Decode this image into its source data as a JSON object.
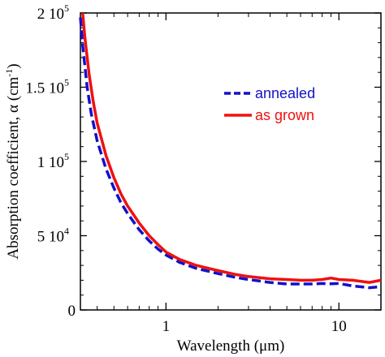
{
  "chart_data": {
    "type": "line",
    "xlabel": "Wavelength  (μm)",
    "ylabel_main": "Absorption coefficient, α (cm",
    "ylabel_sup": "-1",
    "ylabel_close": ")",
    "x_scale": "log",
    "xlim": [
      0.32,
      17.5
    ],
    "ylim": [
      0,
      200000
    ],
    "grid": false,
    "legend_position": "upper-right",
    "x_ticks": [
      {
        "value": 1,
        "label": "1"
      },
      {
        "value": 10,
        "label": "10"
      }
    ],
    "y_ticks": [
      {
        "value": 0,
        "base": "0",
        "exp": ""
      },
      {
        "value": 50000,
        "base": "5 10",
        "exp": "4"
      },
      {
        "value": 100000,
        "base": "1 10",
        "exp": "5"
      },
      {
        "value": 150000,
        "base": "1.5 10",
        "exp": "5"
      },
      {
        "value": 200000,
        "base": "2 10",
        "exp": "5"
      }
    ],
    "series": [
      {
        "name": "annealed",
        "color": "#1111cc",
        "dash": "dashed",
        "x": [
          0.32,
          0.33,
          0.35,
          0.37,
          0.4,
          0.45,
          0.5,
          0.55,
          0.6,
          0.7,
          0.8,
          0.9,
          1.0,
          1.2,
          1.5,
          2.0,
          2.5,
          3.0,
          4.0,
          5.0,
          6.0,
          7.0,
          8.0,
          9.0,
          10.0,
          12.0,
          15.0,
          17.0
        ],
        "y": [
          197000,
          178000,
          150000,
          132000,
          114000,
          95000,
          82000,
          72000,
          65000,
          54000,
          46500,
          41000,
          37000,
          32000,
          28000,
          24500,
          22000,
          20500,
          18500,
          17500,
          17500,
          17500,
          17800,
          17600,
          17800,
          16200,
          15000,
          15500
        ]
      },
      {
        "name": "as grown",
        "color": "#ee1111",
        "dash": "solid",
        "x": [
          0.33,
          0.34,
          0.36,
          0.38,
          0.4,
          0.45,
          0.5,
          0.55,
          0.6,
          0.7,
          0.8,
          0.9,
          1.0,
          1.2,
          1.5,
          2.0,
          2.5,
          3.0,
          4.0,
          5.0,
          6.0,
          7.0,
          8.0,
          9.0,
          10.0,
          12.0,
          15.0,
          17.5
        ],
        "y": [
          200000,
          183000,
          158000,
          140000,
          126000,
          104000,
          89000,
          78000,
          70000,
          58500,
          50000,
          44000,
          39000,
          34000,
          30000,
          26500,
          24000,
          22500,
          21000,
          20500,
          20000,
          20000,
          20500,
          21500,
          20500,
          20000,
          18500,
          20000
        ]
      }
    ]
  }
}
